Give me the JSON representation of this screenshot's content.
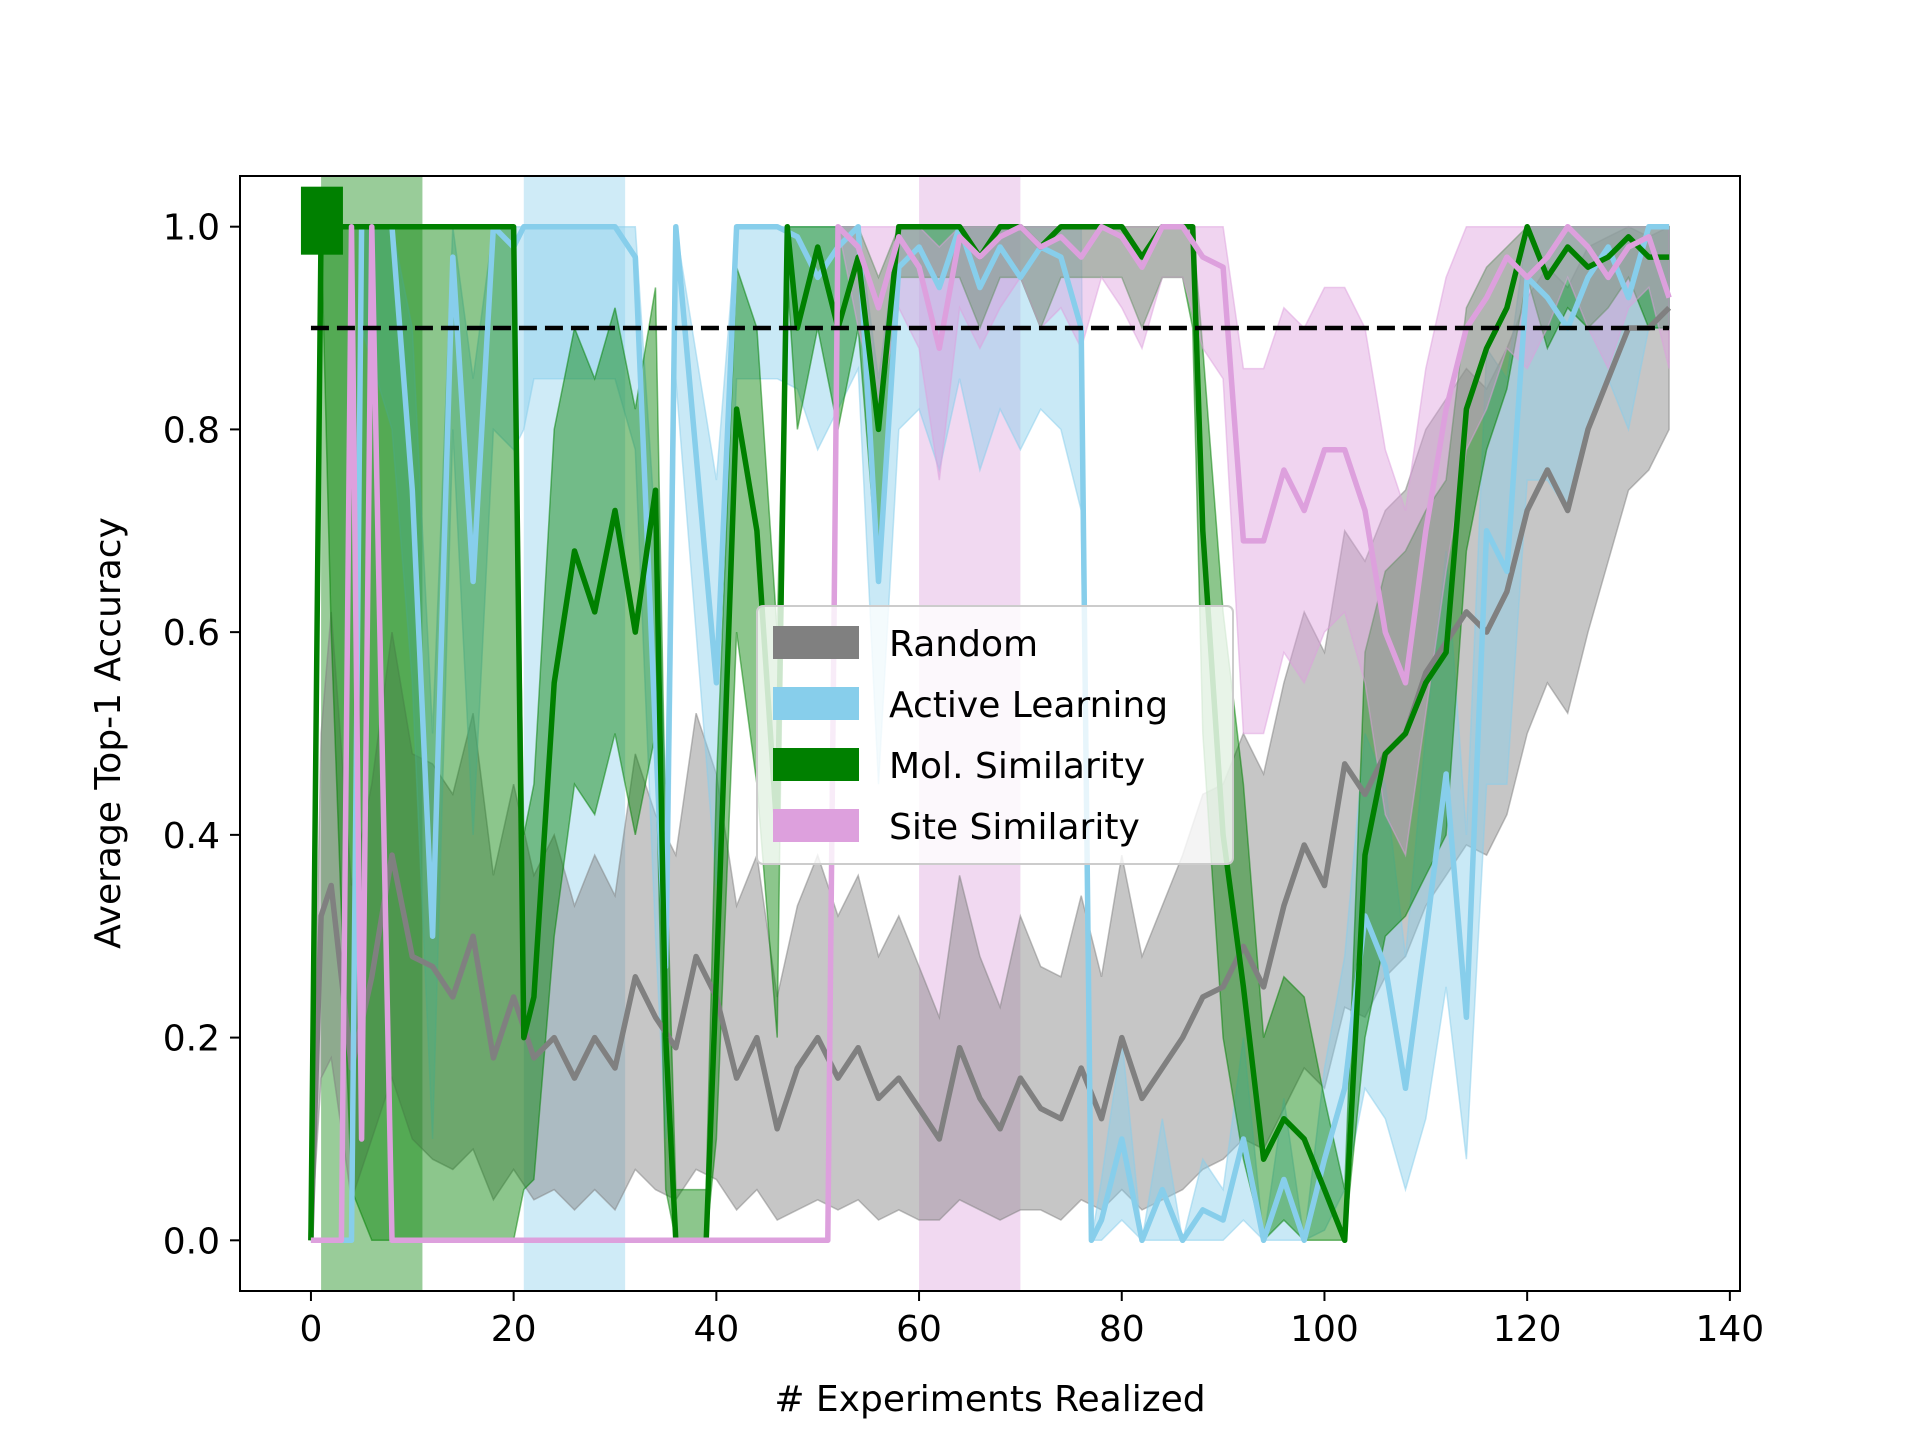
{
  "chart_data": {
    "type": "line",
    "xlabel": "# Experiments Realized",
    "ylabel": "Average Top-1 Accuracy",
    "xlim": [
      -7,
      141
    ],
    "ylim": [
      -0.05,
      1.05
    ],
    "xticks": [
      0,
      20,
      40,
      60,
      80,
      100,
      120,
      140
    ],
    "yticks": [
      0.0,
      0.2,
      0.4,
      0.6,
      0.8,
      1.0
    ],
    "xtick_labels": [
      "0",
      "20",
      "40",
      "60",
      "80",
      "100",
      "120",
      "140"
    ],
    "ytick_labels": [
      "0.0",
      "0.2",
      "0.4",
      "0.6",
      "0.8",
      "1.0"
    ],
    "grid": false,
    "legend_position": "center",
    "reference_line": {
      "y": 0.9,
      "style": "dashed",
      "color": "#000000"
    },
    "colors": {
      "Random": "#808080",
      "Active Learning": "#87CEEB",
      "Mol. Similarity": "#008000",
      "Site Similarity": "#DDA0DD"
    },
    "vertical_bands": [
      {
        "series": "Mol. Similarity",
        "x0": 1,
        "x1": 11
      },
      {
        "series": "Active Learning",
        "x0": 21,
        "x1": 31
      },
      {
        "series": "Site Similarity",
        "x0": 60,
        "x1": 70
      }
    ],
    "series": [
      {
        "name": "Random",
        "x": [
          0,
          1,
          2,
          4,
          6,
          8,
          10,
          12,
          14,
          16,
          18,
          20,
          22,
          24,
          26,
          28,
          30,
          32,
          34,
          36,
          38,
          40,
          42,
          44,
          46,
          48,
          50,
          52,
          54,
          56,
          58,
          60,
          62,
          64,
          66,
          68,
          70,
          72,
          74,
          76,
          78,
          80,
          82,
          84,
          86,
          88,
          90,
          92,
          94,
          96,
          98,
          100,
          102,
          104,
          106,
          108,
          110,
          112,
          114,
          116,
          118,
          120,
          122,
          124,
          126,
          128,
          130,
          132,
          134
        ],
        "y": [
          0.0,
          0.32,
          0.35,
          0.17,
          0.26,
          0.38,
          0.28,
          0.27,
          0.24,
          0.3,
          0.18,
          0.24,
          0.18,
          0.2,
          0.16,
          0.2,
          0.17,
          0.26,
          0.22,
          0.19,
          0.28,
          0.24,
          0.16,
          0.2,
          0.11,
          0.17,
          0.2,
          0.16,
          0.19,
          0.14,
          0.16,
          0.13,
          0.1,
          0.19,
          0.14,
          0.11,
          0.16,
          0.13,
          0.12,
          0.17,
          0.12,
          0.2,
          0.14,
          0.17,
          0.2,
          0.24,
          0.25,
          0.29,
          0.25,
          0.33,
          0.39,
          0.35,
          0.47,
          0.44,
          0.48,
          0.5,
          0.56,
          0.59,
          0.62,
          0.6,
          0.64,
          0.72,
          0.76,
          0.72,
          0.8,
          0.85,
          0.9,
          0.9,
          0.92
        ],
        "lower": [
          0.0,
          0.16,
          0.18,
          0.04,
          0.1,
          0.16,
          0.1,
          0.08,
          0.07,
          0.09,
          0.04,
          0.07,
          0.04,
          0.05,
          0.03,
          0.05,
          0.03,
          0.07,
          0.05,
          0.04,
          0.07,
          0.06,
          0.03,
          0.05,
          0.02,
          0.03,
          0.04,
          0.03,
          0.04,
          0.02,
          0.03,
          0.02,
          0.02,
          0.04,
          0.03,
          0.02,
          0.03,
          0.03,
          0.02,
          0.04,
          0.03,
          0.05,
          0.03,
          0.04,
          0.05,
          0.07,
          0.08,
          0.1,
          0.09,
          0.13,
          0.17,
          0.15,
          0.23,
          0.22,
          0.26,
          0.28,
          0.33,
          0.36,
          0.39,
          0.38,
          0.42,
          0.5,
          0.55,
          0.52,
          0.6,
          0.67,
          0.74,
          0.76,
          0.8
        ],
        "upper": [
          0.0,
          0.5,
          0.62,
          0.35,
          0.45,
          0.6,
          0.48,
          0.47,
          0.44,
          0.52,
          0.36,
          0.45,
          0.36,
          0.4,
          0.33,
          0.38,
          0.34,
          0.48,
          0.42,
          0.38,
          0.52,
          0.46,
          0.33,
          0.38,
          0.24,
          0.33,
          0.38,
          0.32,
          0.36,
          0.28,
          0.32,
          0.27,
          0.22,
          0.36,
          0.28,
          0.23,
          0.32,
          0.27,
          0.26,
          0.34,
          0.26,
          0.38,
          0.28,
          0.33,
          0.38,
          0.44,
          0.45,
          0.5,
          0.46,
          0.55,
          0.62,
          0.58,
          0.7,
          0.67,
          0.72,
          0.74,
          0.8,
          0.83,
          0.86,
          0.84,
          0.88,
          0.93,
          0.96,
          0.94,
          0.98,
          0.99,
          1.0,
          0.99,
          1.0
        ]
      },
      {
        "name": "Active Learning",
        "x": [
          0,
          4,
          5,
          8,
          10,
          12,
          14,
          16,
          18,
          20,
          21,
          22,
          30,
          32,
          34,
          35,
          36,
          40,
          42,
          44,
          46,
          48,
          50,
          52,
          54,
          56,
          58,
          60,
          62,
          64,
          66,
          68,
          70,
          72,
          74,
          76,
          77,
          78,
          80,
          82,
          84,
          86,
          88,
          90,
          92,
          94,
          96,
          98,
          100,
          102,
          104,
          106,
          108,
          110,
          112,
          114,
          116,
          118,
          120,
          122,
          124,
          126,
          128,
          130,
          132,
          134
        ],
        "y": [
          0.0,
          0.0,
          1.0,
          1.0,
          0.74,
          0.3,
          0.97,
          0.65,
          1.0,
          0.98,
          1.0,
          1.0,
          1.0,
          0.97,
          0.5,
          0.27,
          1.0,
          0.55,
          1.0,
          1.0,
          1.0,
          0.99,
          0.95,
          0.98,
          1.0,
          0.65,
          0.96,
          0.98,
          0.94,
          1.0,
          0.94,
          0.98,
          0.95,
          0.98,
          0.97,
          0.9,
          0.0,
          0.02,
          0.1,
          0.0,
          0.05,
          0.0,
          0.03,
          0.02,
          0.1,
          0.0,
          0.06,
          0.0,
          0.08,
          0.15,
          0.32,
          0.27,
          0.15,
          0.3,
          0.46,
          0.22,
          0.7,
          0.66,
          0.95,
          0.93,
          0.9,
          0.95,
          0.98,
          0.93,
          1.0,
          1.0
        ],
        "lower": [
          0.0,
          0.0,
          0.9,
          0.8,
          0.55,
          0.1,
          0.8,
          0.4,
          0.8,
          0.78,
          0.8,
          0.85,
          0.85,
          0.78,
          0.3,
          0.1,
          0.85,
          0.35,
          0.85,
          0.85,
          0.85,
          0.84,
          0.78,
          0.82,
          0.86,
          0.45,
          0.8,
          0.82,
          0.76,
          0.85,
          0.76,
          0.82,
          0.78,
          0.82,
          0.8,
          0.72,
          0.0,
          0.0,
          0.02,
          0.0,
          0.0,
          0.0,
          0.0,
          0.0,
          0.02,
          0.0,
          0.0,
          0.0,
          0.01,
          0.05,
          0.15,
          0.12,
          0.05,
          0.12,
          0.25,
          0.08,
          0.45,
          0.45,
          0.75,
          0.75,
          0.72,
          0.8,
          0.85,
          0.8,
          0.9,
          0.9
        ],
        "upper": [
          0.0,
          0.0,
          1.0,
          1.0,
          0.9,
          0.5,
          1.0,
          0.85,
          1.0,
          1.0,
          1.0,
          1.0,
          1.0,
          1.0,
          0.7,
          0.45,
          1.0,
          0.75,
          1.0,
          1.0,
          1.0,
          1.0,
          1.0,
          1.0,
          1.0,
          0.85,
          1.0,
          1.0,
          1.0,
          1.0,
          1.0,
          1.0,
          1.0,
          1.0,
          1.0,
          1.0,
          0.0,
          0.06,
          0.2,
          0.0,
          0.12,
          0.0,
          0.08,
          0.05,
          0.2,
          0.0,
          0.14,
          0.0,
          0.17,
          0.28,
          0.5,
          0.45,
          0.28,
          0.5,
          0.68,
          0.4,
          0.88,
          0.85,
          1.0,
          1.0,
          1.0,
          1.0,
          1.0,
          1.0,
          1.0,
          1.0
        ]
      },
      {
        "name": "Mol. Similarity",
        "x": [
          0,
          1,
          2,
          4,
          6,
          8,
          10,
          12,
          14,
          16,
          18,
          20,
          21,
          22,
          24,
          26,
          28,
          30,
          32,
          34,
          35,
          36,
          38,
          39,
          40,
          42,
          44,
          46,
          47,
          48,
          50,
          52,
          54,
          56,
          58,
          60,
          62,
          64,
          66,
          68,
          70,
          72,
          74,
          76,
          78,
          80,
          82,
          84,
          86,
          87,
          88,
          90,
          92,
          94,
          96,
          98,
          100,
          102,
          104,
          106,
          108,
          110,
          112,
          114,
          116,
          118,
          120,
          122,
          124,
          126,
          128,
          130,
          132,
          134
        ],
        "y": [
          0.0,
          1.0,
          1.0,
          1.0,
          1.0,
          1.0,
          1.0,
          1.0,
          1.0,
          1.0,
          1.0,
          1.0,
          0.2,
          0.24,
          0.55,
          0.68,
          0.62,
          0.72,
          0.6,
          0.74,
          0.2,
          0.0,
          0.0,
          0.0,
          0.26,
          0.82,
          0.7,
          0.4,
          1.0,
          0.9,
          0.98,
          0.9,
          0.97,
          0.8,
          1.0,
          1.0,
          1.0,
          1.0,
          0.97,
          1.0,
          1.0,
          0.98,
          1.0,
          1.0,
          1.0,
          1.0,
          0.97,
          1.0,
          1.0,
          1.0,
          0.7,
          0.4,
          0.25,
          0.08,
          0.12,
          0.1,
          0.05,
          0.0,
          0.38,
          0.48,
          0.5,
          0.55,
          0.58,
          0.82,
          0.88,
          0.92,
          1.0,
          0.95,
          0.98,
          0.96,
          0.97,
          0.99,
          0.97,
          0.97
        ],
        "lower": [
          0.0,
          1.0,
          0.6,
          0.05,
          0.0,
          0.0,
          0.0,
          0.0,
          0.0,
          0.0,
          0.0,
          0.0,
          0.05,
          0.06,
          0.3,
          0.45,
          0.42,
          0.5,
          0.4,
          0.5,
          0.05,
          0.0,
          0.0,
          0.0,
          0.1,
          0.6,
          0.45,
          0.2,
          0.95,
          0.8,
          0.9,
          0.8,
          0.9,
          0.65,
          0.95,
          0.95,
          0.95,
          0.95,
          0.9,
          0.95,
          0.95,
          0.9,
          0.95,
          0.95,
          0.95,
          0.95,
          0.9,
          0.95,
          0.95,
          0.9,
          0.5,
          0.2,
          0.08,
          0.0,
          0.02,
          0.0,
          0.0,
          0.0,
          0.2,
          0.3,
          0.32,
          0.36,
          0.4,
          0.68,
          0.78,
          0.84,
          0.95,
          0.88,
          0.92,
          0.9,
          0.92,
          0.95,
          0.9,
          0.9
        ],
        "upper": [
          0.0,
          1.0,
          1.0,
          1.0,
          1.0,
          1.0,
          1.0,
          1.0,
          1.0,
          1.0,
          1.0,
          1.0,
          0.4,
          0.45,
          0.8,
          0.9,
          0.85,
          0.92,
          0.82,
          0.94,
          0.4,
          0.05,
          0.05,
          0.05,
          0.45,
          0.96,
          0.9,
          0.6,
          1.0,
          1.0,
          1.0,
          1.0,
          1.0,
          0.95,
          1.0,
          1.0,
          1.0,
          1.0,
          1.0,
          1.0,
          1.0,
          1.0,
          1.0,
          1.0,
          1.0,
          1.0,
          1.0,
          1.0,
          1.0,
          1.0,
          0.88,
          0.62,
          0.45,
          0.2,
          0.26,
          0.24,
          0.14,
          0.05,
          0.58,
          0.66,
          0.68,
          0.72,
          0.75,
          0.92,
          0.96,
          0.98,
          1.0,
          1.0,
          1.0,
          1.0,
          1.0,
          1.0,
          1.0,
          1.0
        ]
      },
      {
        "name": "Site Similarity",
        "x": [
          0,
          3,
          4,
          5,
          6,
          8,
          10,
          12,
          13,
          14,
          16,
          20,
          30,
          40,
          51,
          52,
          54,
          56,
          58,
          60,
          62,
          64,
          66,
          68,
          70,
          72,
          74,
          76,
          78,
          80,
          82,
          84,
          86,
          88,
          90,
          92,
          94,
          96,
          98,
          100,
          102,
          104,
          106,
          108,
          110,
          112,
          114,
          116,
          118,
          120,
          122,
          124,
          126,
          128,
          130,
          132,
          134
        ],
        "y": [
          0.0,
          0.0,
          1.0,
          0.1,
          1.0,
          0.0,
          0.0,
          0.0,
          0.0,
          0.0,
          0.0,
          0.0,
          0.0,
          0.0,
          0.0,
          1.0,
          0.98,
          0.92,
          0.99,
          0.96,
          0.88,
          0.99,
          0.97,
          0.99,
          1.0,
          0.98,
          0.99,
          0.97,
          1.0,
          0.99,
          0.96,
          1.0,
          1.0,
          0.97,
          0.96,
          0.69,
          0.69,
          0.76,
          0.72,
          0.78,
          0.78,
          0.72,
          0.6,
          0.55,
          0.7,
          0.82,
          0.9,
          0.93,
          0.97,
          0.95,
          0.97,
          1.0,
          0.98,
          0.95,
          0.98,
          0.99,
          0.93
        ],
        "lower": [
          0.0,
          0.0,
          1.0,
          0.1,
          1.0,
          0.0,
          0.0,
          0.0,
          0.0,
          0.0,
          0.0,
          0.0,
          0.0,
          0.0,
          0.0,
          1.0,
          0.9,
          0.82,
          0.92,
          0.88,
          0.75,
          0.92,
          0.88,
          0.92,
          0.95,
          0.9,
          0.92,
          0.88,
          0.95,
          0.92,
          0.88,
          0.95,
          0.95,
          0.88,
          0.85,
          0.5,
          0.5,
          0.58,
          0.55,
          0.6,
          0.62,
          0.55,
          0.42,
          0.38,
          0.52,
          0.66,
          0.78,
          0.82,
          0.88,
          0.86,
          0.9,
          0.95,
          0.9,
          0.86,
          0.92,
          0.94,
          0.86
        ],
        "upper": [
          0.0,
          0.0,
          1.0,
          0.1,
          1.0,
          0.0,
          0.0,
          0.0,
          0.0,
          0.0,
          0.0,
          0.0,
          0.0,
          0.0,
          0.0,
          1.0,
          1.0,
          1.0,
          1.0,
          1.0,
          0.98,
          1.0,
          1.0,
          1.0,
          1.0,
          1.0,
          1.0,
          1.0,
          1.0,
          1.0,
          1.0,
          1.0,
          1.0,
          1.0,
          1.0,
          0.86,
          0.86,
          0.92,
          0.9,
          0.94,
          0.94,
          0.9,
          0.78,
          0.72,
          0.86,
          0.95,
          1.0,
          1.0,
          1.0,
          1.0,
          1.0,
          1.0,
          1.0,
          1.0,
          1.0,
          1.0,
          1.0
        ]
      }
    ]
  }
}
